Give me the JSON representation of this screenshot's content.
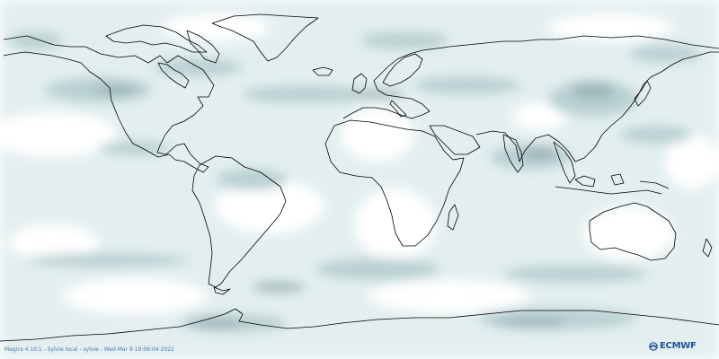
{
  "footer": {
    "credit": "Magics 4.10.1 - Sylvie local - sylvie - Wed Mar  9 19:06:04 2022"
  },
  "logo": {
    "text": "ECMWF",
    "icon": "ecmwf-logo-icon",
    "color": "#1f4f9a"
  },
  "map": {
    "projection": "cylindrical",
    "coastline_color": "#000000",
    "shading_colors": [
      "#e6f1f1",
      "#c4d8d8",
      "#9fb8bb"
    ]
  }
}
